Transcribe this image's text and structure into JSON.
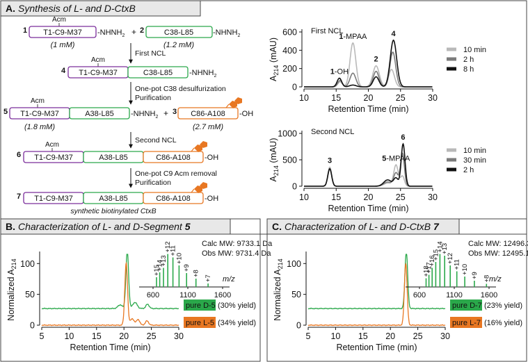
{
  "panel_a": {
    "title_prefix": "A.",
    "title": "Synthesis of L- and D-CtxB",
    "scheme": {
      "c1": {
        "num": "1",
        "label": "T1-C9-M37",
        "tail": "-NHNH",
        "sub": "2",
        "acm": "Acm",
        "conc": "(1 mM)"
      },
      "plus1": "+",
      "c2": {
        "num": "2",
        "label": "C38-L85",
        "tail": "-NHNH",
        "sub": "2",
        "conc": "(1.2 mM)"
      },
      "step1": "First NCL",
      "c4": {
        "num": "4",
        "acm": "Acm",
        "seg1": "T1-C9-M37",
        "seg2": "C38-L85",
        "tail": "-NHNH",
        "sub": "2"
      },
      "step2a": "One-pot C38 desulfurization",
      "step2b": "Purification",
      "c5": {
        "num": "5",
        "acm": "Acm",
        "seg1": "T1-C9-M37",
        "seg2": "A38-L85",
        "tail": "-NHNH",
        "sub": "2",
        "conc": "(1.8 mM)"
      },
      "plus2": "+",
      "c3": {
        "num": "3",
        "label": "C86-A108",
        "tail": "-OH",
        "conc": "(2.7 mM)"
      },
      "step3": "Second NCL",
      "c6": {
        "num": "6",
        "acm": "Acm",
        "seg1": "T1-C9-M37",
        "seg2": "A38-L85",
        "seg3": "C86-A108",
        "tail": "-OH"
      },
      "step4a": "One-pot C9 Acm removal",
      "step4b": "Purification",
      "c7": {
        "num": "7",
        "seg1": "T1-C9-M37",
        "seg2": "A38-L85",
        "seg3": "C86-A108",
        "tail": "-OH",
        "caption": "synthetic biotinylated CtxB"
      }
    }
  },
  "panel_b": {
    "title_prefix": "B.",
    "title": "Characterization of L- and D-Segment",
    "title_num": "5"
  },
  "panel_c": {
    "title_prefix": "C.",
    "title": "Characterization of L- and D-CtxB",
    "title_num": "7"
  },
  "colors": {
    "purple": "#7b2d9b",
    "green": "#2aa84a",
    "orange": "#e87722",
    "grey_light": "#b9b9b9",
    "grey_mid": "#7b7b7b",
    "black": "#111111",
    "header_bg": "#e8e8e8"
  },
  "chart_data": [
    {
      "id": "first-ncl",
      "type": "line",
      "title": "First NCL",
      "xlabel": "Retention Time (min)",
      "ylabel": "A214 (mAU)",
      "xlim": [
        10,
        30
      ],
      "ylim": [
        0,
        600
      ],
      "xticks": [
        10,
        15,
        20,
        25,
        30
      ],
      "yticks": [
        0,
        200,
        400,
        600
      ],
      "legend": [
        "10 min",
        "2 h",
        "8 h"
      ],
      "series": [
        {
          "name": "10 min",
          "color": "#b9b9b9",
          "peaks": [
            [
              15.6,
              55,
              0.35
            ],
            [
              17.6,
              480,
              0.45
            ],
            [
              21.2,
              230,
              0.5
            ],
            [
              23.6,
              190,
              0.45
            ]
          ]
        },
        {
          "name": "2 h",
          "color": "#7b7b7b",
          "peaks": [
            [
              15.6,
              70,
              0.35
            ],
            [
              17.6,
              150,
              0.45
            ],
            [
              21.2,
              170,
              0.45
            ],
            [
              23.8,
              380,
              0.45
            ]
          ]
        },
        {
          "name": "8 h",
          "color": "#111111",
          "peaks": [
            [
              15.5,
              95,
              0.35
            ],
            [
              17.6,
              20,
              0.5
            ],
            [
              21.2,
              110,
              0.45
            ],
            [
              23.9,
              510,
              0.5
            ]
          ]
        }
      ],
      "annotations": [
        {
          "label": "1",
          "suffix": "-OH",
          "x": 15.5,
          "y": 95
        },
        {
          "label": "1",
          "suffix": "-MPAA",
          "x": 17.6,
          "y": 480
        },
        {
          "label": "2",
          "suffix": "",
          "x": 21.2,
          "y": 230
        },
        {
          "label": "4",
          "suffix": "",
          "x": 23.9,
          "y": 510
        }
      ]
    },
    {
      "id": "second-ncl",
      "type": "line",
      "title": "Second NCL",
      "xlabel": "Retention Time (min)",
      "ylabel": "A214 (mAU)",
      "xlim": [
        10,
        30
      ],
      "ylim": [
        0,
        1000
      ],
      "xticks": [
        10,
        15,
        20,
        25,
        30
      ],
      "yticks": [
        0,
        500,
        1000
      ],
      "legend": [
        "10 min",
        "30 min",
        "2 h"
      ],
      "series": [
        {
          "name": "10 min",
          "color": "#b9b9b9",
          "peaks": [
            [
              14.0,
              360,
              0.3
            ],
            [
              23.0,
              60,
              0.6
            ],
            [
              24.3,
              400,
              0.35
            ],
            [
              25.3,
              190,
              0.3
            ]
          ]
        },
        {
          "name": "30 min",
          "color": "#7b7b7b",
          "peaks": [
            [
              14.0,
              330,
              0.3
            ],
            [
              23.0,
              80,
              0.6
            ],
            [
              24.3,
              250,
              0.35
            ],
            [
              25.3,
              620,
              0.3
            ]
          ]
        },
        {
          "name": "2 h",
          "color": "#111111",
          "peaks": [
            [
              14.0,
              330,
              0.3
            ],
            [
              23.0,
              120,
              0.6
            ],
            [
              24.3,
              150,
              0.35
            ],
            [
              25.4,
              800,
              0.3
            ]
          ]
        }
      ],
      "annotations": [
        {
          "label": "3",
          "suffix": "",
          "x": 14.0,
          "y": 360
        },
        {
          "label": "5",
          "suffix": "-MPAA",
          "x": 24.3,
          "y": 400
        },
        {
          "label": "6",
          "suffix": "",
          "x": 25.4,
          "y": 800
        }
      ]
    },
    {
      "id": "segment-5",
      "type": "line",
      "title": "Characterization of L- and D-Segment 5",
      "xlabel": "Retention Time (min)",
      "ylabel": "Normalized A214",
      "xlim": [
        5,
        30
      ],
      "ylim": [
        0,
        115
      ],
      "xticks": [
        5,
        10,
        15,
        20,
        25,
        30
      ],
      "yticks": [
        0,
        50,
        100
      ],
      "series": [
        {
          "name": "pure D-5",
          "color": "#2aa84a",
          "offset": 27,
          "peaks": [
            [
              19.3,
              6,
              0.4
            ],
            [
              20.6,
              93,
              0.25
            ],
            [
              22.0,
              10,
              0.4
            ],
            [
              24.3,
              7,
              0.3
            ]
          ]
        },
        {
          "name": "pure L-5",
          "color": "#e87722",
          "offset": 0,
          "peaks": [
            [
              20.4,
              100,
              0.25
            ],
            [
              21.5,
              10,
              0.4
            ],
            [
              22.6,
              9,
              0.3
            ],
            [
              24.2,
              7,
              0.3
            ]
          ]
        }
      ],
      "labels": [
        {
          "tag": "pure D-5",
          "yield": "(30% yield)"
        },
        {
          "tag": "pure L-5",
          "yield": "(34% yield)"
        }
      ],
      "ms": {
        "calc": "Calc MW: 9733.1 Da",
        "obs": "Obs MW: 9731.4 Da",
        "xlabel": "m/z",
        "xticks": [
          600,
          1100,
          1600
        ],
        "xlim": [
          400,
          1700
        ],
        "charges": [
          {
            "z": "+15",
            "mz": 650,
            "h": 0.28
          },
          {
            "z": "+14",
            "mz": 696,
            "h": 0.42
          },
          {
            "z": "+13",
            "mz": 750,
            "h": 0.55
          },
          {
            "z": "+12",
            "mz": 812,
            "h": 0.95
          },
          {
            "z": "+11",
            "mz": 886,
            "h": 0.85
          },
          {
            "z": "+10",
            "mz": 974,
            "h": 0.62
          },
          {
            "z": "+9",
            "mz": 1082,
            "h": 0.4
          },
          {
            "z": "+8",
            "mz": 1217,
            "h": 0.24
          },
          {
            "z": "+7",
            "mz": 1391,
            "h": 0.1
          }
        ]
      }
    },
    {
      "id": "ctxb-7",
      "type": "line",
      "title": "Characterization of L- and D-CtxB 7",
      "xlabel": "Retention Time (min)",
      "ylabel": "Normalized A214",
      "xlim": [
        5,
        30
      ],
      "ylim": [
        0,
        115
      ],
      "xticks": [
        5,
        10,
        15,
        20,
        25,
        30
      ],
      "yticks": [
        0,
        50,
        100
      ],
      "series": [
        {
          "name": "pure D-7",
          "color": "#2aa84a",
          "offset": 27,
          "peaks": [
            [
              22.9,
              93,
              0.25
            ]
          ]
        },
        {
          "name": "pure L-7",
          "color": "#e87722",
          "offset": 0,
          "peaks": [
            [
              22.8,
              100,
              0.25
            ]
          ]
        }
      ],
      "labels": [
        {
          "tag": "pure D-7",
          "yield": "(23% yield)"
        },
        {
          "tag": "pure L-7",
          "yield": "(16% yield)"
        }
      ],
      "ms": {
        "calc": "Calc MW: 12496.3 Da",
        "obs": "Obs MW: 12495.1 Da",
        "xlabel": "m/z",
        "xticks": [
          600,
          1100,
          1600
        ],
        "xlim": [
          400,
          1700
        ],
        "charges": [
          {
            "z": "+18",
            "mz": 695,
            "h": 0.25
          },
          {
            "z": "+17",
            "mz": 736,
            "h": 0.35
          },
          {
            "z": "+16",
            "mz": 782,
            "h": 0.55
          },
          {
            "z": "+15",
            "mz": 834,
            "h": 0.72
          },
          {
            "z": "+14",
            "mz": 894,
            "h": 0.95
          },
          {
            "z": "+13",
            "mz": 962,
            "h": 0.9
          },
          {
            "z": "+12",
            "mz": 1042,
            "h": 0.62
          },
          {
            "z": "+11",
            "mz": 1137,
            "h": 0.45
          },
          {
            "z": "+10",
            "mz": 1251,
            "h": 0.3
          },
          {
            "z": "+9",
            "mz": 1389,
            "h": 0.18
          },
          {
            "z": "+8",
            "mz": 1563,
            "h": 0.09
          }
        ]
      }
    }
  ]
}
